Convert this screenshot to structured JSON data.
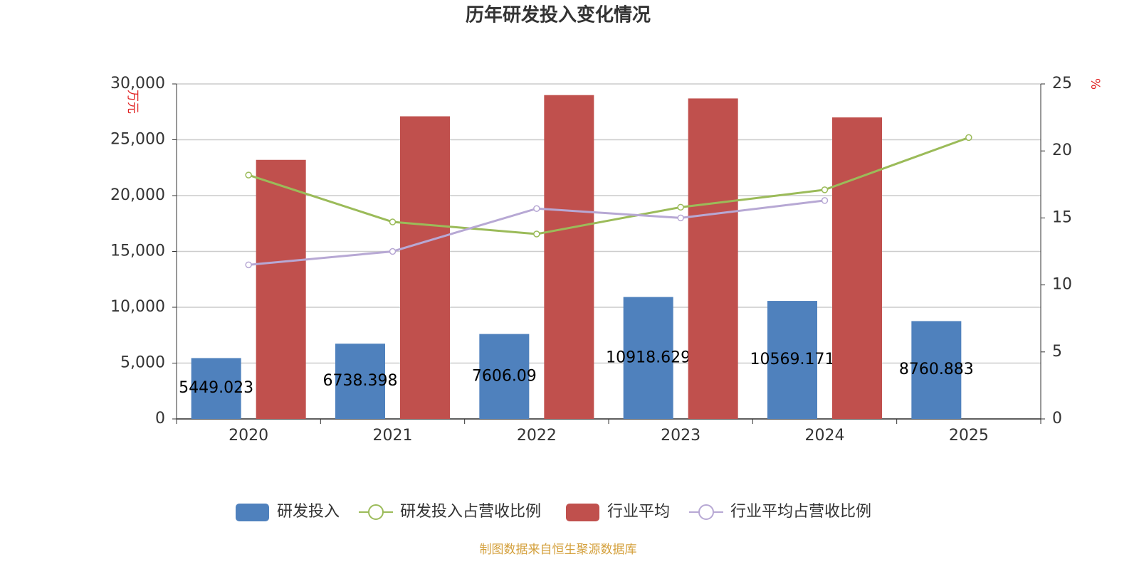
{
  "chart_data": {
    "type": "bar",
    "title": "历年研发投入变化情况",
    "y_label": "万元",
    "y2_label": "%",
    "source": "制图数据来自恒生聚源数据库",
    "categories": [
      "2020",
      "2021",
      "2022",
      "2023",
      "2024",
      "2025"
    ],
    "series": [
      {
        "name": "研发投入",
        "type": "bar",
        "color": "#4f81bd",
        "values": [
          5449.023,
          6738.398,
          7606.09,
          10918.629,
          10569.171,
          8760.883
        ],
        "data_labels": true
      },
      {
        "name": "研发投入占营收比例",
        "type": "line",
        "axis": "y2",
        "color": "#9bbb59",
        "values": [
          18.2,
          14.7,
          13.8,
          15.8,
          17.1,
          21.0
        ]
      },
      {
        "name": "行业平均",
        "type": "bar",
        "color": "#c0504d",
        "values": [
          23200,
          27100,
          29000,
          28700,
          27000,
          null
        ]
      },
      {
        "name": "行业平均占营收比例",
        "type": "line",
        "axis": "y2",
        "color": "#b7a8d4",
        "values": [
          11.5,
          12.5,
          15.7,
          15.0,
          16.3,
          null
        ]
      }
    ],
    "ylim": [
      0,
      30000
    ],
    "yticks": [
      0,
      {
        "value": 5000,
        "label": "5,000"
      },
      {
        "value": 10000,
        "label": "10,000"
      },
      {
        "value": 15000,
        "label": "15,000"
      },
      {
        "value": 20000,
        "label": "20,000"
      },
      {
        "value": 25000,
        "label": "25,000"
      },
      {
        "value": 30000,
        "label": "30,000"
      }
    ],
    "y2lim": [
      0,
      25
    ],
    "y2ticks": [
      0,
      5,
      10,
      15,
      20,
      25
    ],
    "grid": true,
    "legend": "bottom"
  }
}
